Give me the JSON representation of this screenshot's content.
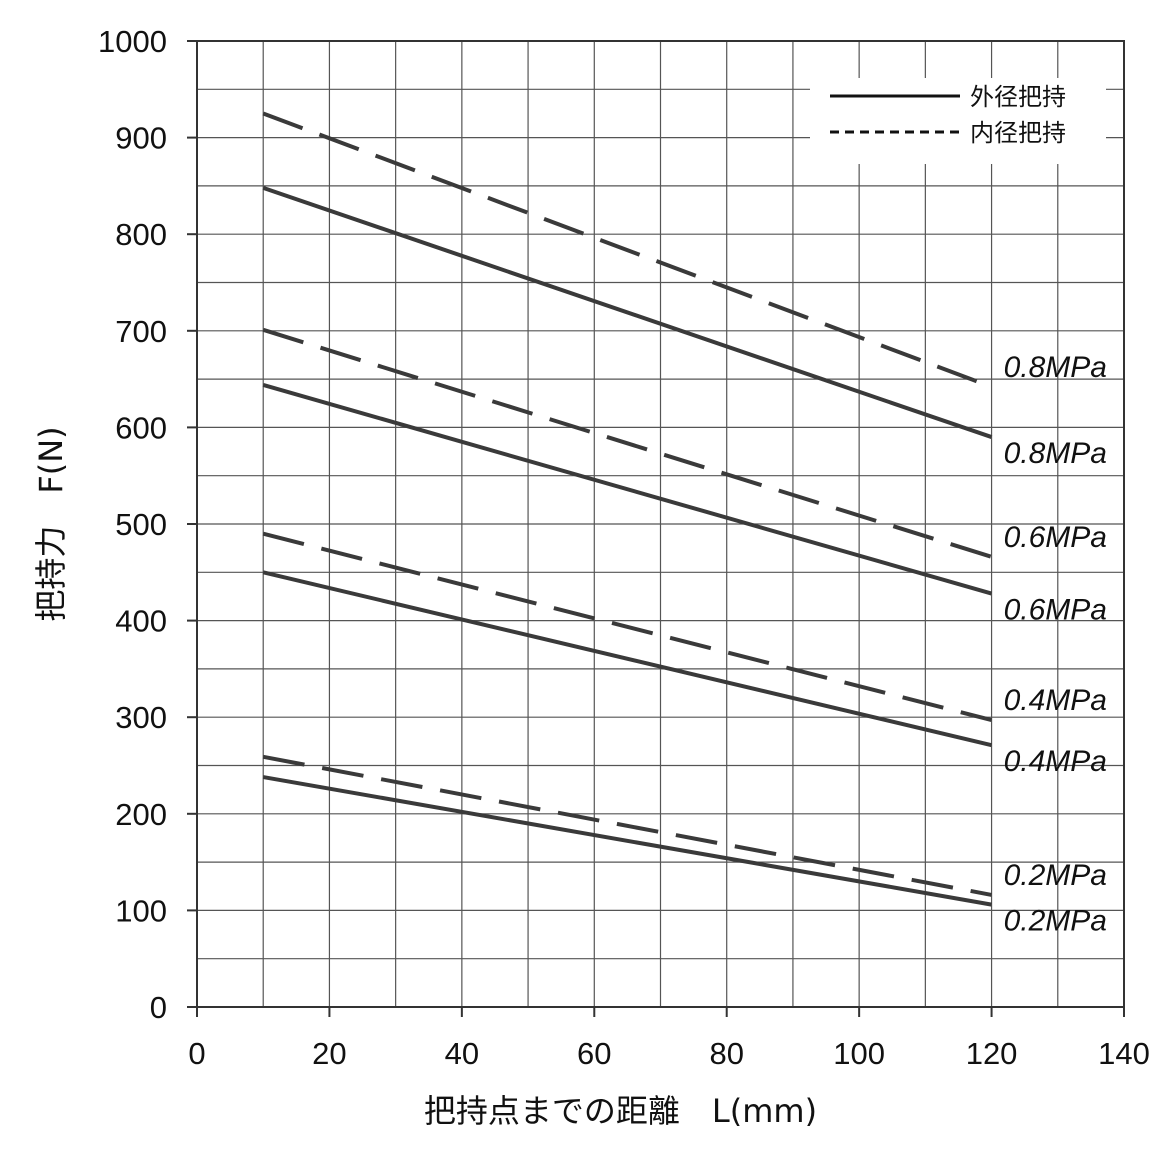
{
  "chart_data": {
    "type": "line",
    "xlabel": "把持点までの距離　L(mm)",
    "ylabel": "把持力　F(N)",
    "xlim": [
      0,
      140
    ],
    "ylim": [
      0,
      1000
    ],
    "xticks": [
      0,
      20,
      40,
      60,
      80,
      100,
      120,
      140
    ],
    "yticks": [
      0,
      100,
      200,
      300,
      400,
      500,
      600,
      700,
      800,
      900,
      1000
    ],
    "x_minor_step": 10,
    "y_minor_step": 50,
    "grid": true,
    "legend_position": "top-right",
    "legend": [
      {
        "label": "外径把持",
        "style": "solid"
      },
      {
        "label": "内径把持",
        "style": "dashed"
      }
    ],
    "series": [
      {
        "group": "外径把持",
        "style": "solid",
        "label": "0.8MPa",
        "x": [
          10,
          120
        ],
        "y": [
          848,
          590
        ]
      },
      {
        "group": "内径把持",
        "style": "dashed",
        "label": "0.8MPa",
        "x": [
          10,
          120
        ],
        "y": [
          925,
          642
        ]
      },
      {
        "group": "外径把持",
        "style": "solid",
        "label": "0.6MPa",
        "x": [
          10,
          120
        ],
        "y": [
          644,
          428
        ]
      },
      {
        "group": "内径把持",
        "style": "dashed",
        "label": "0.6MPa",
        "x": [
          10,
          120
        ],
        "y": [
          701,
          466
        ]
      },
      {
        "group": "外径把持",
        "style": "solid",
        "label": "0.4MPa",
        "x": [
          10,
          120
        ],
        "y": [
          450,
          271
        ]
      },
      {
        "group": "内径把持",
        "style": "dashed",
        "label": "0.4MPa",
        "x": [
          10,
          120
        ],
        "y": [
          490,
          297
        ]
      },
      {
        "group": "外径把持",
        "style": "solid",
        "label": "0.2MPa",
        "x": [
          10,
          120
        ],
        "y": [
          238,
          106
        ]
      },
      {
        "group": "内径把持",
        "style": "dashed",
        "label": "0.2MPa",
        "x": [
          10,
          120
        ],
        "y": [
          259,
          116
        ]
      }
    ],
    "line_color": "#3a3a3a"
  }
}
